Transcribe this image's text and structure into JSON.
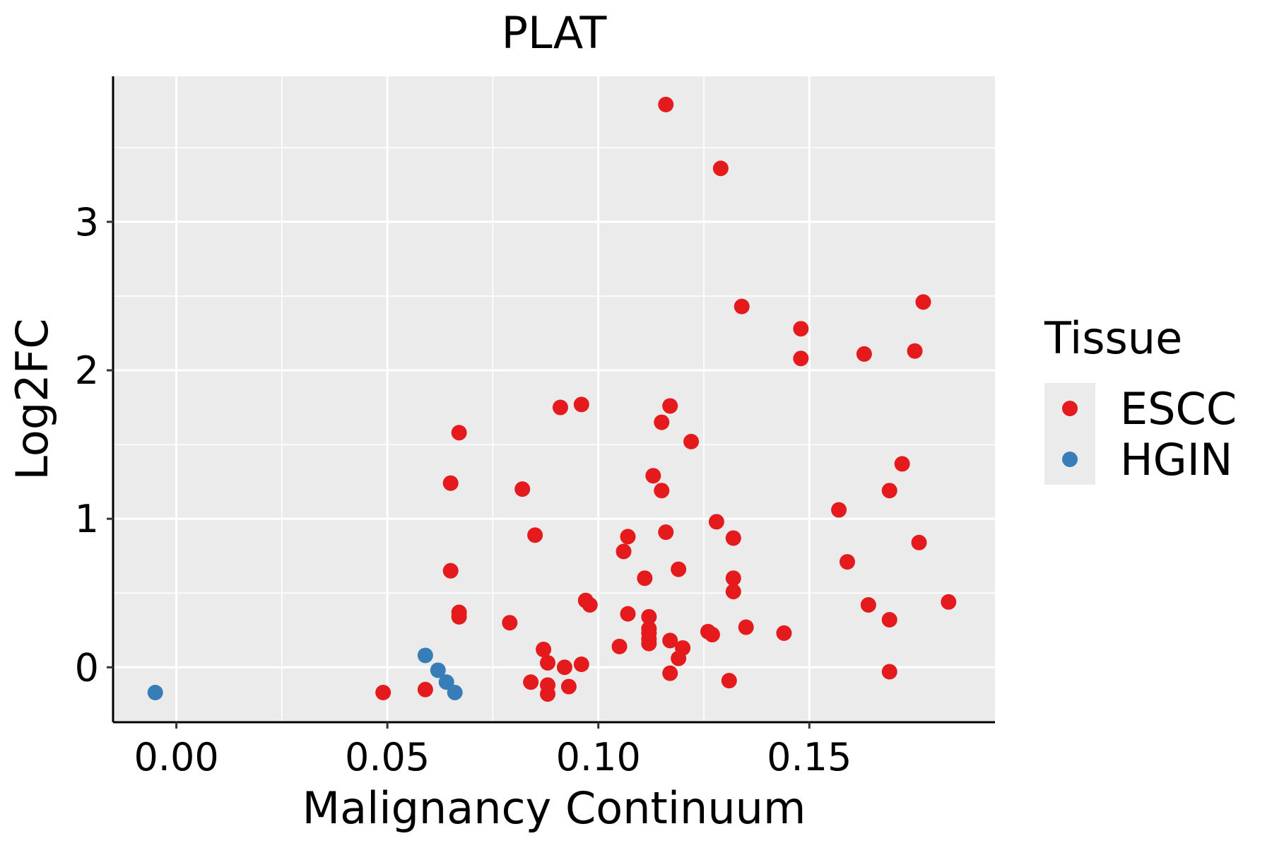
{
  "chart_data": {
    "type": "scatter",
    "title": "PLAT",
    "xlabel": "Malignancy Continuum",
    "ylabel": "Log2FC",
    "xlim": [
      -0.015,
      0.194
    ],
    "ylim": [
      -0.37,
      3.98
    ],
    "x_ticks": [
      0.0,
      0.05,
      0.1,
      0.15
    ],
    "x_tick_labels": [
      "0.00",
      "0.05",
      "0.10",
      "0.15"
    ],
    "y_ticks": [
      0,
      1,
      2,
      3
    ],
    "y_tick_labels": [
      "0",
      "1",
      "2",
      "3"
    ],
    "grid": true,
    "panel_background": "#EBEBEB",
    "legend": {
      "title": "Tissue",
      "position": "right",
      "entries": [
        "ESCC",
        "HGIN"
      ]
    },
    "series": [
      {
        "name": "ESCC",
        "color": "#E41A1C",
        "points": [
          [
            0.116,
            3.79
          ],
          [
            0.129,
            3.36
          ],
          [
            0.134,
            2.43
          ],
          [
            0.177,
            2.46
          ],
          [
            0.148,
            2.28
          ],
          [
            0.148,
            2.08
          ],
          [
            0.163,
            2.11
          ],
          [
            0.175,
            2.13
          ],
          [
            0.067,
            1.58
          ],
          [
            0.091,
            1.75
          ],
          [
            0.096,
            1.77
          ],
          [
            0.117,
            1.76
          ],
          [
            0.115,
            1.65
          ],
          [
            0.122,
            1.52
          ],
          [
            0.172,
            1.37
          ],
          [
            0.065,
            1.24
          ],
          [
            0.082,
            1.2
          ],
          [
            0.113,
            1.29
          ],
          [
            0.115,
            1.19
          ],
          [
            0.169,
            1.19
          ],
          [
            0.157,
            1.06
          ],
          [
            0.085,
            0.89
          ],
          [
            0.107,
            0.88
          ],
          [
            0.116,
            0.91
          ],
          [
            0.128,
            0.98
          ],
          [
            0.132,
            0.87
          ],
          [
            0.176,
            0.84
          ],
          [
            0.106,
            0.78
          ],
          [
            0.065,
            0.65
          ],
          [
            0.119,
            0.66
          ],
          [
            0.159,
            0.71
          ],
          [
            0.111,
            0.6
          ],
          [
            0.132,
            0.6
          ],
          [
            0.132,
            0.51
          ],
          [
            0.097,
            0.45
          ],
          [
            0.098,
            0.42
          ],
          [
            0.164,
            0.42
          ],
          [
            0.183,
            0.44
          ],
          [
            0.067,
            0.37
          ],
          [
            0.067,
            0.34
          ],
          [
            0.107,
            0.36
          ],
          [
            0.112,
            0.34
          ],
          [
            0.079,
            0.3
          ],
          [
            0.169,
            0.32
          ],
          [
            0.112,
            0.26
          ],
          [
            0.112,
            0.23
          ],
          [
            0.126,
            0.24
          ],
          [
            0.127,
            0.22
          ],
          [
            0.135,
            0.27
          ],
          [
            0.144,
            0.23
          ],
          [
            0.112,
            0.19
          ],
          [
            0.117,
            0.18
          ],
          [
            0.112,
            0.16
          ],
          [
            0.105,
            0.14
          ],
          [
            0.12,
            0.13
          ],
          [
            0.087,
            0.12
          ],
          [
            0.119,
            0.06
          ],
          [
            0.088,
            0.03
          ],
          [
            0.092,
            0.0
          ],
          [
            0.096,
            0.02
          ],
          [
            0.117,
            -0.04
          ],
          [
            0.169,
            -0.03
          ],
          [
            0.131,
            -0.09
          ],
          [
            0.049,
            -0.17
          ],
          [
            0.059,
            -0.15
          ],
          [
            0.084,
            -0.1
          ],
          [
            0.088,
            -0.12
          ],
          [
            0.088,
            -0.18
          ],
          [
            0.093,
            -0.13
          ]
        ]
      },
      {
        "name": "HGIN",
        "color": "#377EB8",
        "points": [
          [
            -0.005,
            -0.17
          ],
          [
            0.059,
            0.08
          ],
          [
            0.062,
            -0.02
          ],
          [
            0.064,
            -0.1
          ],
          [
            0.066,
            -0.17
          ]
        ]
      }
    ]
  }
}
